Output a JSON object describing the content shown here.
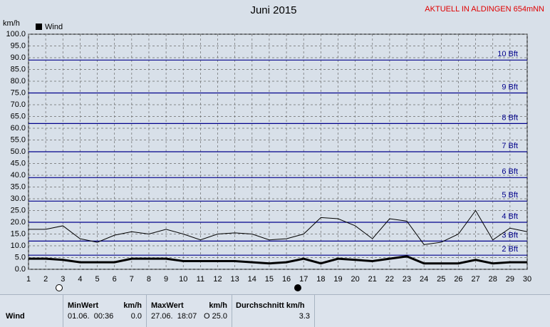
{
  "chart_data": {
    "type": "line",
    "title": "Juni 2015",
    "station": "AKTUELL IN ALDINGEN 654mNN",
    "y_label": "km/h",
    "x": [
      1,
      2,
      3,
      4,
      5,
      6,
      7,
      8,
      9,
      10,
      11,
      12,
      13,
      14,
      15,
      16,
      17,
      18,
      19,
      20,
      21,
      22,
      23,
      24,
      25,
      26,
      27,
      28,
      29,
      30
    ],
    "series": [
      {
        "name": "Wind",
        "color": "#000000",
        "values": [
          4.5,
          4.5,
          4,
          3,
          3,
          3,
          4.5,
          4.5,
          4.5,
          3.5,
          3.5,
          3.5,
          3.5,
          3,
          2.5,
          3,
          4.5,
          2.5,
          4.5,
          4,
          3.5,
          4.5,
          5.5,
          2.5,
          2.5,
          2.5,
          4,
          2.5,
          3,
          3
        ]
      },
      {
        "color": "#000000",
        "values": [
          17,
          17,
          18.5,
          13,
          11.5,
          14.5,
          16,
          15,
          17,
          15,
          12.5,
          15,
          15.5,
          15,
          12.5,
          13,
          15,
          22,
          21.5,
          18.5,
          13,
          21.5,
          20.5,
          10.5,
          11.5,
          15,
          25,
          12.5,
          17.5,
          16
        ]
      }
    ],
    "reference_lines": [
      {
        "value": 6,
        "label": "2 Bft"
      },
      {
        "value": 12,
        "label": "3 Bft"
      },
      {
        "value": 20,
        "label": "4 Bft"
      },
      {
        "value": 29,
        "label": "5 Bft"
      },
      {
        "value": 39,
        "label": "6 Bft"
      },
      {
        "value": 50,
        "label": "7 Bft"
      },
      {
        "value": 62,
        "label": "8 Bft"
      },
      {
        "value": 75,
        "label": "9 Bft"
      },
      {
        "value": 89,
        "label": "10 Bft"
      }
    ],
    "reference_color": "#00008b",
    "xlim": [
      1,
      30
    ],
    "xticks": [
      1,
      2,
      3,
      4,
      5,
      6,
      7,
      8,
      9,
      10,
      11,
      12,
      13,
      14,
      15,
      16,
      17,
      18,
      19,
      20,
      21,
      22,
      23,
      24,
      25,
      26,
      27,
      28,
      29,
      30
    ],
    "ylim": [
      0,
      100
    ],
    "yticks": [
      {
        "value": 0,
        "label": "0.0"
      },
      {
        "value": 5,
        "label": "5.0"
      },
      {
        "value": 10,
        "label": "10.0"
      },
      {
        "value": 15,
        "label": "15.0"
      },
      {
        "value": 20,
        "label": "20.0"
      },
      {
        "value": 25,
        "label": "25.0"
      },
      {
        "value": 30,
        "label": "30.0"
      },
      {
        "value": 35,
        "label": "35.0"
      },
      {
        "value": 40,
        "label": "40.0"
      },
      {
        "value": 45,
        "label": "45.0"
      },
      {
        "value": 50,
        "label": "50.0"
      },
      {
        "value": 55,
        "label": "55.0"
      },
      {
        "value": 60,
        "label": "60.0"
      },
      {
        "value": 65,
        "label": "65.0"
      },
      {
        "value": 70,
        "label": "70.0"
      },
      {
        "value": 75,
        "label": "75.0"
      },
      {
        "value": 80,
        "label": "80.0"
      },
      {
        "value": 85,
        "label": "85.0"
      },
      {
        "value": 90,
        "label": "90.0"
      },
      {
        "value": 95,
        "label": "95.0"
      },
      {
        "value": 100,
        "label": "100.0"
      }
    ],
    "grid": true
  },
  "table": {
    "headers": [
      "MinWert",
      "km/h",
      "MaxWert",
      "km/h",
      "Durchschnitt km/h"
    ],
    "rows": [
      [
        "Wind",
        "01.06.  00:36",
        "0.0",
        "27.06.  18:07",
        "O 25.0",
        "3.3"
      ]
    ]
  }
}
